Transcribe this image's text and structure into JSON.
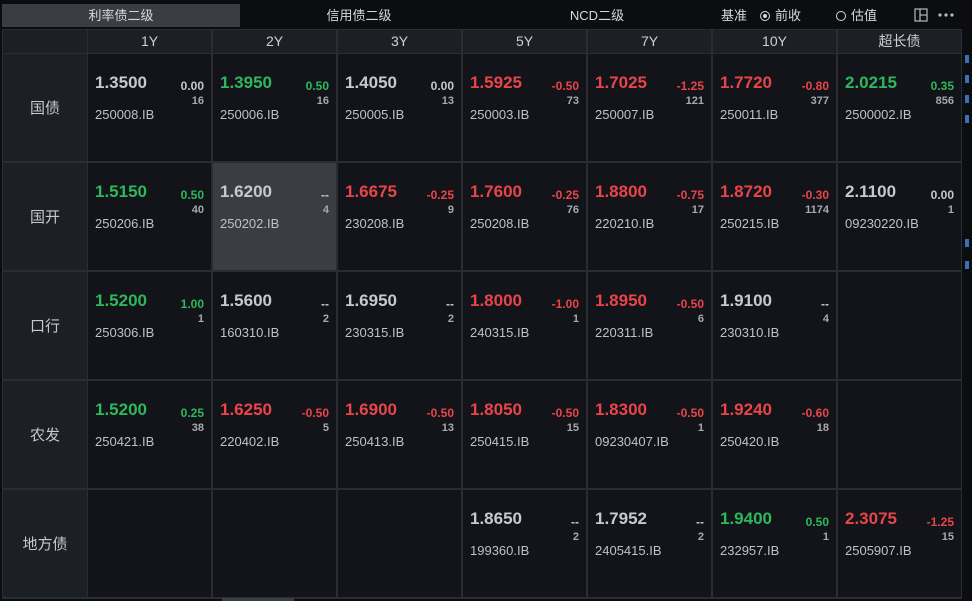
{
  "tabs": [
    {
      "label": "利率债二级",
      "active": true
    },
    {
      "label": "信用债二级",
      "active": false
    },
    {
      "label": "NCD二级",
      "active": false
    }
  ],
  "basis": {
    "label": "基准",
    "options": [
      {
        "label": "前收",
        "selected": true
      },
      {
        "label": "估值",
        "selected": false
      }
    ]
  },
  "toolbar": {
    "icons": [
      "layout-icon",
      "more-icon"
    ]
  },
  "colors": {
    "up": "#e8454a",
    "down": "#2eb85c",
    "neutral": "#c8c9cc",
    "background": "#0b0d11",
    "cell": "#121419",
    "selected": "#3a3d43"
  },
  "columns": [
    "1Y",
    "2Y",
    "3Y",
    "5Y",
    "7Y",
    "10Y",
    "超长债"
  ],
  "rows": [
    {
      "label": "国债",
      "cells": [
        {
          "yield": "1.3500",
          "change": "0.00",
          "count": "16",
          "code": "250008.IB",
          "dir": "nt"
        },
        {
          "yield": "1.3950",
          "change": "0.50",
          "count": "16",
          "code": "250006.IB",
          "dir": "dn"
        },
        {
          "yield": "1.4050",
          "change": "0.00",
          "count": "13",
          "code": "250005.IB",
          "dir": "nt"
        },
        {
          "yield": "1.5925",
          "change": "-0.50",
          "count": "73",
          "code": "250003.IB",
          "dir": "up"
        },
        {
          "yield": "1.7025",
          "change": "-1.25",
          "count": "121",
          "code": "250007.IB",
          "dir": "up"
        },
        {
          "yield": "1.7720",
          "change": "-0.80",
          "count": "377",
          "code": "250011.IB",
          "dir": "up"
        },
        {
          "yield": "2.0215",
          "change": "0.35",
          "count": "856",
          "code": "2500002.IB",
          "dir": "dn"
        }
      ]
    },
    {
      "label": "国开",
      "cells": [
        {
          "yield": "1.5150",
          "change": "0.50",
          "count": "40",
          "code": "250206.IB",
          "dir": "dn"
        },
        {
          "yield": "1.6200",
          "change": "--",
          "count": "4",
          "code": "250202.IB",
          "dir": "nt",
          "selected": true
        },
        {
          "yield": "1.6675",
          "change": "-0.25",
          "count": "9",
          "code": "230208.IB",
          "dir": "up"
        },
        {
          "yield": "1.7600",
          "change": "-0.25",
          "count": "76",
          "code": "250208.IB",
          "dir": "up"
        },
        {
          "yield": "1.8800",
          "change": "-0.75",
          "count": "17",
          "code": "220210.IB",
          "dir": "up"
        },
        {
          "yield": "1.8720",
          "change": "-0.30",
          "count": "1174",
          "code": "250215.IB",
          "dir": "up"
        },
        {
          "yield": "2.1100",
          "change": "0.00",
          "count": "1",
          "code": "09230220.IB",
          "dir": "nt"
        }
      ]
    },
    {
      "label": "口行",
      "cells": [
        {
          "yield": "1.5200",
          "change": "1.00",
          "count": "1",
          "code": "250306.IB",
          "dir": "dn"
        },
        {
          "yield": "1.5600",
          "change": "--",
          "count": "2",
          "code": "160310.IB",
          "dir": "nt"
        },
        {
          "yield": "1.6950",
          "change": "--",
          "count": "2",
          "code": "230315.IB",
          "dir": "nt"
        },
        {
          "yield": "1.8000",
          "change": "-1.00",
          "count": "1",
          "code": "240315.IB",
          "dir": "up"
        },
        {
          "yield": "1.8950",
          "change": "-0.50",
          "count": "6",
          "code": "220311.IB",
          "dir": "up"
        },
        {
          "yield": "1.9100",
          "change": "--",
          "count": "4",
          "code": "230310.IB",
          "dir": "nt"
        },
        null
      ]
    },
    {
      "label": "农发",
      "cells": [
        {
          "yield": "1.5200",
          "change": "0.25",
          "count": "38",
          "code": "250421.IB",
          "dir": "dn"
        },
        {
          "yield": "1.6250",
          "change": "-0.50",
          "count": "5",
          "code": "220402.IB",
          "dir": "up"
        },
        {
          "yield": "1.6900",
          "change": "-0.50",
          "count": "13",
          "code": "250413.IB",
          "dir": "up"
        },
        {
          "yield": "1.8050",
          "change": "-0.50",
          "count": "15",
          "code": "250415.IB",
          "dir": "up"
        },
        {
          "yield": "1.8300",
          "change": "-0.50",
          "count": "1",
          "code": "09230407.IB",
          "dir": "up"
        },
        {
          "yield": "1.9240",
          "change": "-0.60",
          "count": "18",
          "code": "250420.IB",
          "dir": "up"
        },
        null
      ]
    },
    {
      "label": "地方债",
      "cells": [
        null,
        null,
        null,
        {
          "yield": "1.8650",
          "change": "--",
          "count": "2",
          "code": "199360.IB",
          "dir": "nt"
        },
        {
          "yield": "1.7952",
          "change": "--",
          "count": "2",
          "code": "2405415.IB",
          "dir": "nt"
        },
        {
          "yield": "1.9400",
          "change": "0.50",
          "count": "1",
          "code": "232957.IB",
          "dir": "dn"
        },
        {
          "yield": "2.3075",
          "change": "-1.25",
          "count": "15",
          "code": "2505907.IB",
          "dir": "up"
        }
      ]
    }
  ]
}
